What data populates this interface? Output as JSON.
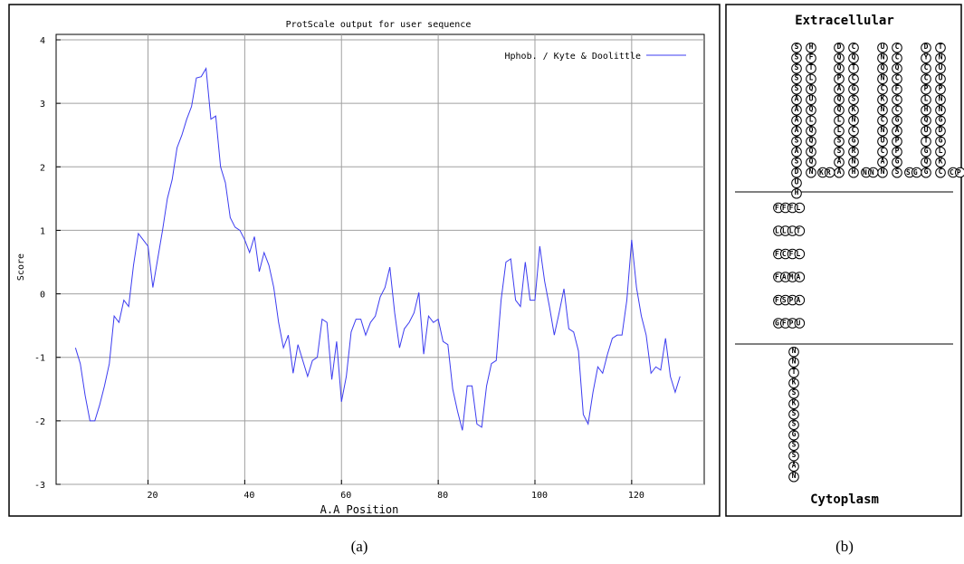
{
  "chart_data": {
    "type": "line",
    "title": "ProtScale output for user sequence",
    "x_label": "A.A Position",
    "y_label": "Score",
    "x": [
      5,
      6,
      7,
      8,
      9,
      10,
      11,
      12,
      13,
      14,
      15,
      16,
      17,
      18,
      19,
      20,
      21,
      22,
      23,
      24,
      25,
      26,
      27,
      28,
      29,
      30,
      31,
      32,
      33,
      34,
      35,
      36,
      37,
      38,
      39,
      40,
      41,
      42,
      43,
      44,
      45,
      46,
      47,
      48,
      49,
      50,
      51,
      52,
      53,
      54,
      55,
      56,
      57,
      58,
      59,
      60,
      61,
      62,
      63,
      64,
      65,
      66,
      67,
      68,
      69,
      70,
      71,
      72,
      73,
      74,
      75,
      76,
      77,
      78,
      79,
      80,
      81,
      82,
      83,
      84,
      85,
      86,
      87,
      88,
      89,
      90,
      91,
      92,
      93,
      94,
      95,
      96,
      97,
      98,
      99,
      100,
      101,
      102,
      103,
      104,
      105,
      106,
      107,
      108,
      109,
      110,
      111,
      112,
      113,
      114,
      115,
      116,
      117,
      118,
      119,
      120,
      121,
      122,
      123,
      124,
      125,
      126,
      127,
      128,
      129,
      130
    ],
    "series": [
      {
        "name": "Hphob. / Kyte & Doolittle",
        "color": "#3c3cf0",
        "values": [
          -0.85,
          -1.1,
          -1.6,
          -2.0,
          -2.0,
          -1.75,
          -1.45,
          -1.1,
          -0.35,
          -0.45,
          -0.1,
          -0.2,
          0.45,
          0.95,
          0.85,
          0.75,
          0.1,
          0.55,
          1.0,
          1.5,
          1.8,
          2.3,
          2.5,
          2.75,
          2.95,
          3.4,
          3.42,
          3.55,
          2.75,
          2.8,
          2.0,
          1.75,
          1.2,
          1.05,
          1.0,
          0.85,
          0.65,
          0.9,
          0.35,
          0.65,
          0.45,
          0.1,
          -0.45,
          -0.85,
          -0.65,
          -1.25,
          -0.8,
          -1.05,
          -1.3,
          -1.05,
          -1.0,
          -0.4,
          -0.45,
          -1.35,
          -0.75,
          -1.7,
          -1.3,
          -0.6,
          -0.4,
          -0.4,
          -0.65,
          -0.45,
          -0.35,
          -0.05,
          0.1,
          0.42,
          -0.3,
          -0.85,
          -0.55,
          -0.45,
          -0.3,
          0.02,
          -0.95,
          -0.35,
          -0.45,
          -0.4,
          -0.75,
          -0.8,
          -1.5,
          -1.85,
          -2.15,
          -1.45,
          -1.45,
          -2.05,
          -2.1,
          -1.45,
          -1.1,
          -1.05,
          -0.1,
          0.5,
          0.55,
          -0.1,
          -0.2,
          0.5,
          -0.1,
          -0.1,
          0.75,
          0.2,
          -0.2,
          -0.65,
          -0.3,
          0.08,
          -0.55,
          -0.6,
          -0.9,
          -1.9,
          -2.05,
          -1.55,
          -1.15,
          -1.25,
          -0.95,
          -0.7,
          -0.65,
          -0.65,
          -0.1,
          0.85,
          0.1,
          -0.35,
          -0.65,
          -1.25,
          -1.15,
          -1.2,
          -0.7,
          -1.3,
          -1.55,
          -1.3
        ]
      }
    ],
    "xlim": [
      1,
      135
    ],
    "ylim": [
      -3,
      4
    ],
    "xticks": [
      20,
      40,
      60,
      80,
      100,
      120
    ],
    "yticks": [
      -3,
      -2,
      -1,
      0,
      1,
      2,
      3,
      4
    ],
    "grid": true,
    "legend": "top-right"
  },
  "diagram": {
    "top_label": "Extracellular",
    "bottom_label": "Cytoplasm",
    "extracellular_columns": [
      "SSSSSAAAASASDUH",
      "HFTLQUQLQQQQN",
      "DQQPAQQLLSSAA",
      "CQTCGSKNCGRNH",
      "UNQNCKNCNUCAN",
      "CCQCFCCGAPPGS",
      "DYCCPLHQUTGQG",
      "TNUUPNNGDGLKC"
    ],
    "extracellular_turns": [
      "KR",
      "NN",
      "SG",
      "CP"
    ],
    "membrane_rows": [
      "FFFL",
      "LLLT",
      "FCFL",
      "FAMA",
      "FSPA",
      "GFPU"
    ],
    "cytoplasm_column": "NNTKSKSSGSSAN"
  },
  "captions": [
    "(a)",
    "(b)"
  ]
}
